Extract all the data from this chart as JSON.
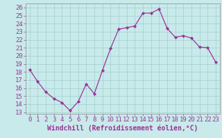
{
  "x_values": [
    0,
    1,
    2,
    3,
    4,
    5,
    6,
    7,
    8,
    9,
    10,
    11,
    12,
    13,
    14,
    15,
    16,
    17,
    18,
    19,
    20,
    21,
    22,
    23
  ],
  "y_values": [
    18.3,
    16.8,
    15.5,
    14.7,
    14.2,
    13.2,
    14.3,
    16.5,
    15.3,
    18.2,
    20.9,
    23.3,
    23.5,
    23.7,
    25.3,
    25.3,
    25.8,
    23.4,
    22.3,
    22.5,
    22.2,
    21.1,
    21.0,
    19.2
  ],
  "line_color": "#993399",
  "marker_color": "#993399",
  "bg_color": "#c8eaea",
  "grid_color": "#a0cccc",
  "axes_color": "#666666",
  "tick_color": "#993399",
  "xlabel": "Windchill (Refroidissement éolien,°C)",
  "ylim_min": 12.8,
  "ylim_max": 26.5,
  "xlim_min": -0.5,
  "xlim_max": 23.5,
  "yticks": [
    13,
    14,
    15,
    16,
    17,
    18,
    19,
    20,
    21,
    22,
    23,
    24,
    25,
    26
  ],
  "xticks": [
    0,
    1,
    2,
    3,
    4,
    5,
    6,
    7,
    8,
    9,
    10,
    11,
    12,
    13,
    14,
    15,
    16,
    17,
    18,
    19,
    20,
    21,
    22,
    23
  ],
  "font_size": 6.5,
  "xlabel_font_size": 7.0,
  "linewidth": 0.9,
  "markersize": 2.2
}
